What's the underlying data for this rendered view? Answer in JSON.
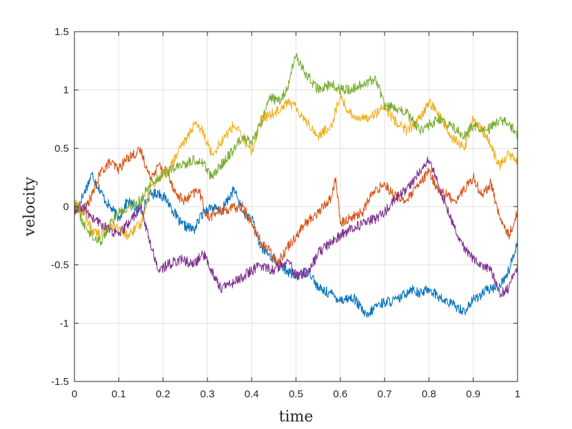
{
  "chart_data": {
    "type": "line",
    "title": "",
    "xlabel": "time",
    "ylabel": "velocity",
    "xlim": [
      0,
      1
    ],
    "ylim": [
      -1.5,
      1.5
    ],
    "xticks": [
      0,
      0.1,
      0.2,
      0.3,
      0.4,
      0.5,
      0.6,
      0.7,
      0.8,
      0.9,
      1
    ],
    "xtick_labels": [
      "0",
      "0.1",
      "0.2",
      "0.3",
      "0.4",
      "0.5",
      "0.6",
      "0.7",
      "0.8",
      "0.9",
      "1"
    ],
    "yticks": [
      -1.5,
      -1,
      -0.5,
      0,
      0.5,
      1,
      1.5
    ],
    "ytick_labels": [
      "-1.5",
      "-1",
      "-0.5",
      "0",
      "0.5",
      "1",
      "1.5"
    ],
    "grid": true,
    "legend": "none",
    "series": [
      {
        "color": "#0072BD",
        "x": [
          0,
          0.02,
          0.04,
          0.05,
          0.07,
          0.1,
          0.12,
          0.15,
          0.17,
          0.19,
          0.21,
          0.24,
          0.27,
          0.29,
          0.31,
          0.33,
          0.36,
          0.38,
          0.4,
          0.42,
          0.45,
          0.48,
          0.5,
          0.53,
          0.55,
          0.58,
          0.6,
          0.63,
          0.66,
          0.68,
          0.7,
          0.73,
          0.76,
          0.78,
          0.8,
          0.83,
          0.86,
          0.88,
          0.9,
          0.93,
          0.96,
          0.98,
          1.0
        ],
        "y": [
          -0.05,
          0.1,
          0.28,
          0.2,
          0.05,
          -0.1,
          0.05,
          -0.05,
          0.1,
          0.12,
          0.05,
          -0.15,
          -0.2,
          -0.05,
          0.0,
          -0.05,
          0.15,
          -0.05,
          -0.1,
          -0.35,
          -0.45,
          -0.55,
          -0.6,
          -0.55,
          -0.7,
          -0.75,
          -0.8,
          -0.78,
          -0.95,
          -0.85,
          -0.82,
          -0.8,
          -0.7,
          -0.75,
          -0.7,
          -0.8,
          -0.85,
          -0.9,
          -0.8,
          -0.72,
          -0.68,
          -0.55,
          -0.3
        ]
      },
      {
        "color": "#D95319",
        "x": [
          0,
          0.02,
          0.04,
          0.06,
          0.08,
          0.1,
          0.12,
          0.15,
          0.17,
          0.19,
          0.21,
          0.23,
          0.25,
          0.28,
          0.3,
          0.32,
          0.35,
          0.38,
          0.4,
          0.42,
          0.44,
          0.46,
          0.48,
          0.5,
          0.52,
          0.55,
          0.58,
          0.59,
          0.6,
          0.62,
          0.65,
          0.67,
          0.7,
          0.72,
          0.75,
          0.78,
          0.8,
          0.82,
          0.84,
          0.86,
          0.88,
          0.9,
          0.92,
          0.94,
          0.96,
          0.98,
          1.0
        ],
        "y": [
          0.0,
          -0.05,
          0.1,
          0.3,
          0.38,
          0.32,
          0.42,
          0.48,
          0.25,
          0.35,
          0.3,
          0.1,
          0.05,
          0.15,
          -0.1,
          -0.05,
          -0.02,
          0.0,
          -0.15,
          -0.3,
          -0.38,
          -0.48,
          -0.35,
          -0.25,
          -0.15,
          -0.05,
          0.08,
          0.25,
          -0.15,
          -0.1,
          -0.05,
          0.1,
          0.2,
          0.1,
          0.05,
          0.2,
          0.3,
          0.15,
          0.1,
          0.05,
          0.15,
          0.25,
          0.1,
          0.2,
          -0.1,
          -0.25,
          -0.05
        ]
      },
      {
        "color": "#EDB120",
        "x": [
          0,
          0.02,
          0.04,
          0.06,
          0.08,
          0.1,
          0.12,
          0.15,
          0.17,
          0.19,
          0.21,
          0.24,
          0.27,
          0.29,
          0.31,
          0.33,
          0.36,
          0.38,
          0.4,
          0.42,
          0.45,
          0.48,
          0.5,
          0.52,
          0.55,
          0.58,
          0.6,
          0.62,
          0.65,
          0.68,
          0.7,
          0.72,
          0.75,
          0.78,
          0.8,
          0.82,
          0.85,
          0.88,
          0.9,
          0.93,
          0.96,
          0.98,
          1.0
        ],
        "y": [
          0.05,
          -0.05,
          -0.2,
          -0.25,
          -0.15,
          -0.2,
          -0.25,
          -0.15,
          0.15,
          0.25,
          0.3,
          0.5,
          0.7,
          0.65,
          0.45,
          0.55,
          0.7,
          0.6,
          0.45,
          0.75,
          0.8,
          0.9,
          0.85,
          0.75,
          0.6,
          0.7,
          0.95,
          0.8,
          0.75,
          0.8,
          0.85,
          0.75,
          0.65,
          0.75,
          0.9,
          0.8,
          0.6,
          0.5,
          0.75,
          0.6,
          0.35,
          0.45,
          0.38
        ]
      },
      {
        "color": "#7E2F8E",
        "x": [
          0,
          0.02,
          0.04,
          0.06,
          0.08,
          0.1,
          0.12,
          0.15,
          0.17,
          0.19,
          0.21,
          0.24,
          0.27,
          0.29,
          0.31,
          0.33,
          0.36,
          0.38,
          0.4,
          0.42,
          0.45,
          0.48,
          0.5,
          0.53,
          0.55,
          0.58,
          0.6,
          0.62,
          0.65,
          0.68,
          0.7,
          0.72,
          0.75,
          0.78,
          0.8,
          0.82,
          0.84,
          0.86,
          0.88,
          0.9,
          0.92,
          0.94,
          0.96,
          0.98,
          1.0
        ],
        "y": [
          -0.05,
          0.0,
          -0.1,
          -0.15,
          -0.2,
          -0.25,
          -0.15,
          0.0,
          -0.3,
          -0.55,
          -0.5,
          -0.45,
          -0.5,
          -0.4,
          -0.55,
          -0.7,
          -0.65,
          -0.6,
          -0.55,
          -0.5,
          -0.55,
          -0.45,
          -0.6,
          -0.55,
          -0.4,
          -0.3,
          -0.25,
          -0.2,
          -0.15,
          -0.1,
          -0.05,
          0.05,
          0.15,
          0.3,
          0.4,
          0.2,
          0.0,
          -0.2,
          -0.35,
          -0.45,
          -0.5,
          -0.55,
          -0.75,
          -0.7,
          -0.5
        ]
      },
      {
        "color": "#77AC30",
        "x": [
          0,
          0.02,
          0.04,
          0.06,
          0.08,
          0.1,
          0.12,
          0.15,
          0.17,
          0.19,
          0.21,
          0.24,
          0.27,
          0.29,
          0.31,
          0.33,
          0.36,
          0.38,
          0.4,
          0.42,
          0.44,
          0.46,
          0.48,
          0.5,
          0.52,
          0.55,
          0.58,
          0.6,
          0.62,
          0.65,
          0.68,
          0.7,
          0.72,
          0.75,
          0.78,
          0.8,
          0.82,
          0.85,
          0.88,
          0.9,
          0.93,
          0.96,
          0.98,
          1.0
        ],
        "y": [
          0.05,
          -0.15,
          -0.25,
          -0.3,
          -0.15,
          -0.05,
          0.0,
          0.05,
          0.2,
          0.25,
          0.3,
          0.35,
          0.4,
          0.38,
          0.25,
          0.35,
          0.5,
          0.6,
          0.55,
          0.7,
          0.95,
          0.9,
          1.0,
          1.3,
          1.15,
          1.0,
          1.05,
          1.0,
          1.0,
          1.05,
          1.1,
          0.85,
          0.85,
          0.8,
          0.65,
          0.7,
          0.75,
          0.7,
          0.6,
          0.7,
          0.65,
          0.75,
          0.7,
          0.62
        ]
      }
    ]
  }
}
